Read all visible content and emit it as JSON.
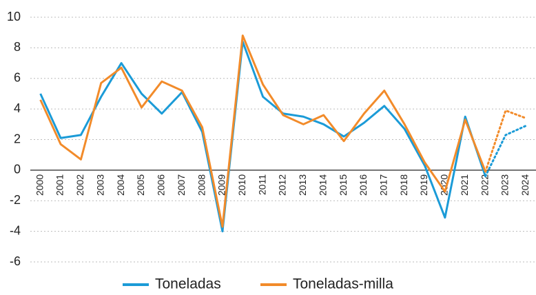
{
  "chart_data": {
    "type": "line",
    "categories": [
      "2000",
      "2001",
      "2002",
      "2003",
      "2004",
      "2005",
      "2006",
      "2007",
      "2008",
      "2009",
      "2010",
      "2011",
      "2012",
      "2013",
      "2014",
      "2015",
      "2016",
      "2017",
      "2018",
      "2019",
      "2020",
      "2021",
      "2022",
      "2023",
      "2024"
    ],
    "series": [
      {
        "name": "Toneladas",
        "color": "#1b9bd7",
        "values": [
          5.0,
          2.1,
          2.3,
          4.8,
          7.0,
          5.0,
          3.7,
          5.1,
          2.5,
          -4.0,
          8.4,
          4.8,
          3.7,
          3.5,
          3.0,
          2.2,
          3.1,
          4.2,
          2.7,
          0.3,
          -3.1,
          3.5,
          -0.4,
          2.3,
          2.9
        ]
      },
      {
        "name": "Toneladas-milla",
        "color": "#f28b2a",
        "values": [
          4.6,
          1.7,
          0.7,
          5.7,
          6.7,
          4.1,
          5.8,
          5.2,
          2.8,
          -3.7,
          8.8,
          5.6,
          3.6,
          3.0,
          3.6,
          1.9,
          3.7,
          5.2,
          3.0,
          0.5,
          -1.4,
          3.3,
          -0.1,
          3.9,
          3.4
        ]
      }
    ],
    "projected_from": "2022",
    "ylim": [
      -6,
      10
    ],
    "yticks": [
      -6,
      -4,
      -2,
      0,
      2,
      4,
      6,
      8,
      10
    ],
    "grid": true
  }
}
